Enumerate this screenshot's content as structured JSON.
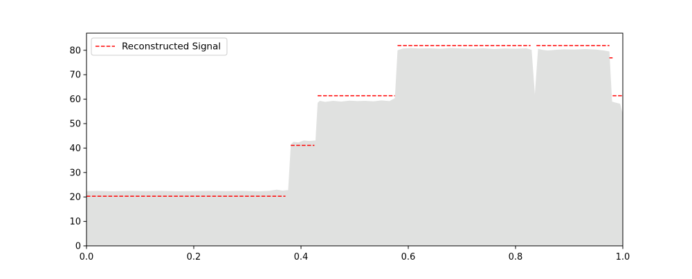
{
  "chart_data": {
    "type": "area",
    "title": "",
    "xlabel": "",
    "ylabel": "",
    "xlim": [
      0.0,
      1.0
    ],
    "ylim": [
      0,
      87
    ],
    "xticks": [
      0.0,
      0.2,
      0.4,
      0.6,
      0.8,
      1.0
    ],
    "xtick_labels": [
      "0.0",
      "0.2",
      "0.4",
      "0.6",
      "0.8",
      "1.0"
    ],
    "yticks": [
      0,
      10,
      20,
      30,
      40,
      50,
      60,
      70,
      80
    ],
    "ytick_labels": [
      "0",
      "10",
      "20",
      "30",
      "40",
      "50",
      "60",
      "70",
      "80"
    ],
    "grid": false,
    "legend_position": "top-left",
    "legend": [
      {
        "label": "Reconstructed Signal",
        "style": "dashed",
        "color": "#ff0000"
      }
    ],
    "series": [
      {
        "kind": "area",
        "color": "#e0e1e0",
        "points": [
          [
            0.0,
            22.4
          ],
          [
            0.02,
            22.5
          ],
          [
            0.05,
            22.3
          ],
          [
            0.08,
            22.5
          ],
          [
            0.11,
            22.4
          ],
          [
            0.14,
            22.5
          ],
          [
            0.17,
            22.3
          ],
          [
            0.2,
            22.4
          ],
          [
            0.23,
            22.5
          ],
          [
            0.26,
            22.4
          ],
          [
            0.29,
            22.5
          ],
          [
            0.32,
            22.3
          ],
          [
            0.34,
            22.5
          ],
          [
            0.355,
            23.0
          ],
          [
            0.365,
            22.6
          ],
          [
            0.376,
            22.8
          ],
          [
            0.381,
            41.5
          ],
          [
            0.386,
            42.6
          ],
          [
            0.395,
            42.3
          ],
          [
            0.405,
            43.1
          ],
          [
            0.415,
            42.9
          ],
          [
            0.427,
            43.1
          ],
          [
            0.431,
            58.5
          ],
          [
            0.435,
            59.3
          ],
          [
            0.445,
            58.9
          ],
          [
            0.46,
            59.3
          ],
          [
            0.475,
            59.0
          ],
          [
            0.49,
            59.4
          ],
          [
            0.505,
            59.2
          ],
          [
            0.52,
            59.3
          ],
          [
            0.535,
            59.1
          ],
          [
            0.55,
            59.5
          ],
          [
            0.565,
            59.2
          ],
          [
            0.575,
            60.4
          ],
          [
            0.58,
            80.0
          ],
          [
            0.59,
            80.7
          ],
          [
            0.605,
            80.9
          ],
          [
            0.62,
            80.7
          ],
          [
            0.64,
            80.8
          ],
          [
            0.66,
            80.6
          ],
          [
            0.68,
            80.9
          ],
          [
            0.7,
            80.7
          ],
          [
            0.72,
            80.6
          ],
          [
            0.74,
            80.8
          ],
          [
            0.76,
            80.5
          ],
          [
            0.78,
            80.7
          ],
          [
            0.8,
            80.6
          ],
          [
            0.82,
            80.8
          ],
          [
            0.83,
            80.2
          ],
          [
            0.836,
            62.0
          ],
          [
            0.842,
            80.6
          ],
          [
            0.85,
            80.2
          ],
          [
            0.86,
            79.9
          ],
          [
            0.875,
            80.2
          ],
          [
            0.89,
            80.4
          ],
          [
            0.91,
            80.3
          ],
          [
            0.93,
            80.5
          ],
          [
            0.95,
            80.3
          ],
          [
            0.965,
            79.9
          ],
          [
            0.975,
            79.5
          ],
          [
            0.98,
            59.0
          ],
          [
            0.988,
            58.5
          ],
          [
            0.995,
            58.1
          ],
          [
            1.0,
            54.0
          ]
        ]
      },
      {
        "name": "Reconstructed Signal",
        "kind": "step-dashed",
        "color": "#ff0000",
        "segments": [
          {
            "x0": 0.0,
            "x1": 0.371,
            "y": 20.3
          },
          {
            "x0": 0.381,
            "x1": 0.425,
            "y": 41.1
          },
          {
            "x0": 0.431,
            "x1": 0.575,
            "y": 61.4
          },
          {
            "x0": 0.58,
            "x1": 0.828,
            "y": 81.9
          },
          {
            "x0": 0.839,
            "x1": 0.975,
            "y": 81.9
          },
          {
            "x0": 0.975,
            "x1": 0.981,
            "y": 76.9
          },
          {
            "x0": 0.981,
            "x1": 1.0,
            "y": 61.4
          }
        ]
      }
    ]
  }
}
